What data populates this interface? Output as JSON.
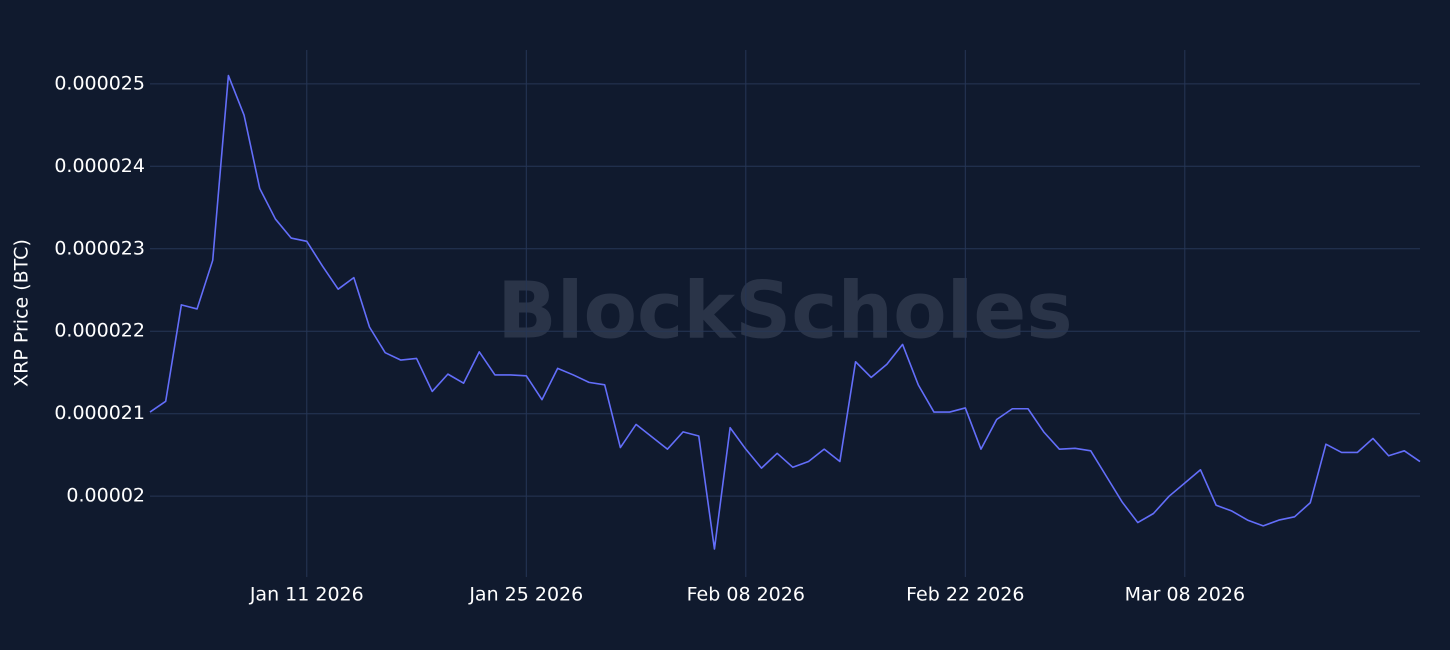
{
  "chart_data": {
    "type": "line",
    "watermark": "BlockScholes",
    "y_label": "XRP Price (BTC)",
    "x": [
      "2026-01-01",
      "2026-01-02",
      "2026-01-03",
      "2026-01-04",
      "2026-01-05",
      "2026-01-06",
      "2026-01-07",
      "2026-01-08",
      "2026-01-09",
      "2026-01-10",
      "2026-01-11",
      "2026-01-12",
      "2026-01-13",
      "2026-01-14",
      "2026-01-15",
      "2026-01-16",
      "2026-01-17",
      "2026-01-18",
      "2026-01-19",
      "2026-01-20",
      "2026-01-21",
      "2026-01-22",
      "2026-01-23",
      "2026-01-24",
      "2026-01-25",
      "2026-01-26",
      "2026-01-27",
      "2026-01-28",
      "2026-01-29",
      "2026-01-30",
      "2026-01-31",
      "2026-02-01",
      "2026-02-02",
      "2026-02-03",
      "2026-02-04",
      "2026-02-05",
      "2026-02-06",
      "2026-02-07",
      "2026-02-08",
      "2026-02-09",
      "2026-02-10",
      "2026-02-11",
      "2026-02-12",
      "2026-02-13",
      "2026-02-14",
      "2026-02-15",
      "2026-02-16",
      "2026-02-17",
      "2026-02-18",
      "2026-02-19",
      "2026-02-20",
      "2026-02-21",
      "2026-02-22",
      "2026-02-23",
      "2026-02-24",
      "2026-02-25",
      "2026-02-26",
      "2026-02-27",
      "2026-02-28",
      "2026-03-01",
      "2026-03-02",
      "2026-03-03",
      "2026-03-04",
      "2026-03-05",
      "2026-03-06",
      "2026-03-07",
      "2026-03-08",
      "2026-03-09",
      "2026-03-10",
      "2026-03-11",
      "2026-03-12",
      "2026-03-13",
      "2026-03-14",
      "2026-03-15",
      "2026-03-16",
      "2026-03-17",
      "2026-03-18",
      "2026-03-19",
      "2026-03-20",
      "2026-03-21",
      "2026-03-22",
      "2026-03-23"
    ],
    "series": [
      {
        "name": "XRP Price",
        "color": "#636efa",
        "values": [
          2.102e-05,
          2.115e-05,
          2.232e-05,
          2.227e-05,
          2.286e-05,
          2.51e-05,
          2.462e-05,
          2.373e-05,
          2.336e-05,
          2.313e-05,
          2.309e-05,
          2.279e-05,
          2.251e-05,
          2.265e-05,
          2.205e-05,
          2.174e-05,
          2.165e-05,
          2.167e-05,
          2.127e-05,
          2.148e-05,
          2.137e-05,
          2.175e-05,
          2.147e-05,
          2.147e-05,
          2.146e-05,
          2.117e-05,
          2.155e-05,
          2.147e-05,
          2.138e-05,
          2.135e-05,
          2.059e-05,
          2.087e-05,
          2.072e-05,
          2.057e-05,
          2.078e-05,
          2.073e-05,
          1.936e-05,
          2.083e-05,
          2.057e-05,
          2.034e-05,
          2.052e-05,
          2.035e-05,
          2.042e-05,
          2.057e-05,
          2.042e-05,
          2.163e-05,
          2.144e-05,
          2.16e-05,
          2.184e-05,
          2.135e-05,
          2.102e-05,
          2.102e-05,
          2.107e-05,
          2.057e-05,
          2.093e-05,
          2.106e-05,
          2.106e-05,
          2.078e-05,
          2.057e-05,
          2.058e-05,
          2.055e-05,
          2.024e-05,
          1.993e-05,
          1.968e-05,
          1.979e-05,
          2e-05,
          2.016e-05,
          2.032e-05,
          1.989e-05,
          1.982e-05,
          1.971e-05,
          1.964e-05,
          1.971e-05,
          1.975e-05,
          1.992e-05,
          2.063e-05,
          2.053e-05,
          2.053e-05,
          2.07e-05,
          2.049e-05,
          2.055e-05,
          2.042e-05
        ]
      }
    ],
    "xlim": [
      "2026-01-01",
      "2026-03-23"
    ],
    "xticks": [
      {
        "value": "2026-01-11",
        "label": "Jan 11 2026"
      },
      {
        "value": "2026-01-25",
        "label": "Jan 25 2026"
      },
      {
        "value": "2026-02-08",
        "label": "Feb 08 2026"
      },
      {
        "value": "2026-02-22",
        "label": "Feb 22 2026"
      },
      {
        "value": "2026-03-08",
        "label": "Mar 08 2026"
      }
    ],
    "ylim": [
      1.902e-05,
      2.541e-05
    ],
    "yticks": [
      2e-05,
      2.1e-05,
      2.2e-05,
      2.3e-05,
      2.4e-05,
      2.5e-05
    ],
    "grid": true
  }
}
